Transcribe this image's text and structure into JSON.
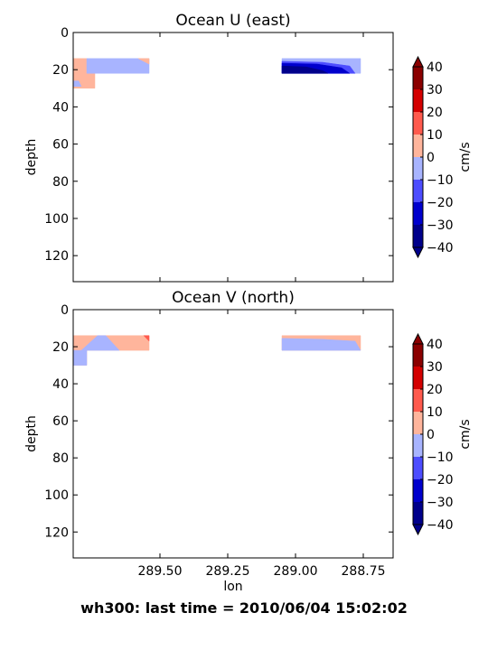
{
  "figure": {
    "suptitle": "wh300: last time = 2010/06/04 15:02:02",
    "colormap": [
      "#00008b",
      "#0000cd",
      "#4d4dff",
      "#a8b4ff",
      "#ffb59c",
      "#ff5a4d",
      "#d40000",
      "#8b0000"
    ],
    "colormap_levels": [
      -40,
      -30,
      -20,
      -10,
      0,
      10,
      20,
      30,
      40
    ]
  },
  "chart_data": [
    {
      "type": "contourf",
      "title": "Ocean U (east)",
      "ylabel": "depth",
      "xlabel": "",
      "xlim": [
        289.82,
        288.64
      ],
      "ylim": [
        134,
        0
      ],
      "x_inverted": true,
      "y_inverted": true,
      "xticks": [
        289.5,
        289.25,
        289.0,
        288.75
      ],
      "xtick_labels": [],
      "yticks": [
        0,
        20,
        40,
        60,
        80,
        100,
        120
      ],
      "colorbar": {
        "label": "cm/s",
        "ticks": [
          40,
          30,
          20,
          10,
          0,
          -10,
          -20,
          -30,
          -40
        ],
        "levels": [
          -40,
          -30,
          -20,
          -10,
          0,
          10,
          20,
          30,
          40
        ]
      },
      "regions": [
        {
          "level": "0 to 10",
          "color": "#ffb59c",
          "points": [
            [
              289.82,
              14
            ],
            [
              289.77,
              14
            ],
            [
              289.77,
              22
            ],
            [
              289.74,
              22
            ],
            [
              289.74,
              30
            ],
            [
              289.82,
              30
            ]
          ]
        },
        {
          "level": "-10 to 0",
          "color": "#a8b4ff",
          "points": [
            [
              289.77,
              14
            ],
            [
              289.54,
              14
            ],
            [
              289.54,
              22
            ],
            [
              289.77,
              22
            ]
          ]
        },
        {
          "level": "0 to 10",
          "color": "#ffb59c",
          "points": [
            [
              289.58,
              14
            ],
            [
              289.54,
              14
            ],
            [
              289.54,
              17
            ]
          ]
        },
        {
          "level": "-10 to 0",
          "color": "#a8b4ff",
          "points": [
            [
              289.82,
              26
            ],
            [
              289.8,
              26
            ],
            [
              289.79,
              29
            ],
            [
              289.82,
              29
            ]
          ]
        },
        {
          "level": "-10 to 0",
          "color": "#a8b4ff",
          "points": [
            [
              289.05,
              14
            ],
            [
              288.76,
              14
            ],
            [
              288.76,
              22
            ],
            [
              289.05,
              22
            ]
          ]
        },
        {
          "level": "-20 to -10",
          "color": "#4d4dff",
          "points": [
            [
              289.05,
              15.5
            ],
            [
              288.9,
              16
            ],
            [
              288.8,
              18
            ],
            [
              288.78,
              22
            ],
            [
              289.05,
              22
            ]
          ]
        },
        {
          "level": "-30 to -20",
          "color": "#0000cd",
          "points": [
            [
              289.05,
              16.5
            ],
            [
              288.92,
              17
            ],
            [
              288.83,
              19
            ],
            [
              288.8,
              22
            ],
            [
              289.05,
              22
            ]
          ]
        },
        {
          "level": "-40 to -30",
          "color": "#00008b",
          "points": [
            [
              289.05,
              18
            ],
            [
              288.96,
              18.5
            ],
            [
              288.9,
              20.5
            ],
            [
              288.88,
              22
            ],
            [
              289.05,
              22
            ]
          ]
        }
      ]
    },
    {
      "type": "contourf",
      "title": "Ocean V (north)",
      "ylabel": "depth",
      "xlabel": "lon",
      "xlim": [
        289.82,
        288.64
      ],
      "ylim": [
        134,
        0
      ],
      "x_inverted": true,
      "y_inverted": true,
      "xticks": [
        289.5,
        289.25,
        289.0,
        288.75
      ],
      "xtick_labels": [
        "289.50",
        "289.25",
        "289.00",
        "288.75"
      ],
      "yticks": [
        0,
        20,
        40,
        60,
        80,
        100,
        120
      ],
      "colorbar": {
        "label": "cm/s",
        "ticks": [
          40,
          30,
          20,
          10,
          0,
          -10,
          -20,
          -30,
          -40
        ],
        "levels": [
          -40,
          -30,
          -20,
          -10,
          0,
          10,
          20,
          30,
          40
        ]
      },
      "regions": [
        {
          "level": "0 to 10",
          "color": "#ffb59c",
          "points": [
            [
              289.82,
              14
            ],
            [
              289.54,
              14
            ],
            [
              289.54,
              22
            ],
            [
              289.77,
              22
            ],
            [
              289.77,
              30
            ],
            [
              289.82,
              30
            ]
          ]
        },
        {
          "level": "-10 to 0",
          "color": "#a8b4ff",
          "points": [
            [
              289.82,
              22
            ],
            [
              289.77,
              22
            ],
            [
              289.77,
              30
            ],
            [
              289.82,
              30
            ]
          ]
        },
        {
          "level": "-10 to 0",
          "color": "#a8b4ff",
          "points": [
            [
              289.79,
              22
            ],
            [
              289.73,
              14
            ],
            [
              289.7,
              14
            ],
            [
              289.65,
              22
            ]
          ]
        },
        {
          "level": "10 to 20",
          "color": "#ff5a4d",
          "points": [
            [
              289.56,
              14
            ],
            [
              289.54,
              14
            ],
            [
              289.54,
              17
            ]
          ]
        },
        {
          "level": "0 to 10",
          "color": "#ffb59c",
          "points": [
            [
              289.05,
              14
            ],
            [
              288.76,
              14
            ],
            [
              288.76,
              22
            ],
            [
              289.05,
              22
            ]
          ]
        },
        {
          "level": "-10 to 0",
          "color": "#a8b4ff",
          "points": [
            [
              289.05,
              15.5
            ],
            [
              288.9,
              16
            ],
            [
              288.78,
              17
            ],
            [
              288.76,
              22
            ],
            [
              289.05,
              22
            ]
          ]
        }
      ]
    }
  ]
}
